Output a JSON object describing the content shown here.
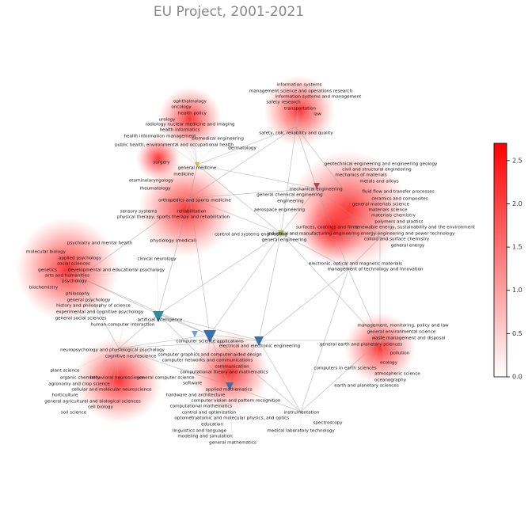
{
  "chart_data": {
    "type": "network",
    "title": "EU Project, 2001-2021",
    "clim": [
      0,
      2.7
    ],
    "cticks": [
      {
        "value": 0,
        "label": "0.0"
      },
      {
        "value": 0.5,
        "label": "0.5"
      },
      {
        "value": 1,
        "label": "1.0"
      },
      {
        "value": 1.5,
        "label": "1.5"
      },
      {
        "value": 2,
        "label": "2.0"
      },
      {
        "value": 2.5,
        "label": "2.5"
      }
    ],
    "nodes": [
      "information systems",
      "management science and operations research",
      "information systems and management",
      "safety research",
      "transportation",
      "law",
      "safety, risk, reliability and quality",
      "ophthalmology",
      "oncology",
      "health policy",
      "urology",
      "radiology nuclear medicine and imaging",
      "health informatics",
      "health information management",
      "biomedical engineering",
      "public health, environmental and occupational health",
      "dermatology",
      "surgery",
      "general medicine",
      "medicine",
      "otorhinolaryngology",
      "rheumatology",
      "orthopedics and sports medicine",
      "sensory systems",
      "rehabilitation",
      "physical therapy, sports therapy and rehabilitation",
      "physiology (medical)",
      "psychiatry and mental health",
      "clinical neurology",
      "molecular biology",
      "applied psychology",
      "social sciences",
      "genetics",
      "developmental and educational psychology",
      "arts and humanities",
      "psychology",
      "biochemistry",
      "philosophy",
      "general psychology",
      "history and philosophy of science",
      "experimental and cognitive psychology",
      "general social sciences",
      "artificial intelligence",
      "human-computer interaction",
      "computer science applications",
      "electrical and electronic engineering",
      "neuropsychology and physiological psychology",
      "cognitive neuroscience",
      "computer graphics and computer-aided design",
      "computer networks and communications",
      "communication",
      "computational theory and mathematics",
      "software",
      "plant science",
      "organic chemistry",
      "behavioral neuroscience",
      "general computer science",
      "agronomy and crop science",
      "cellular and molecular neuroscience",
      "horticulture",
      "general agricultural and biological sciences",
      "cell biology",
      "soil science",
      "applied mathematics",
      "hardware and architecture",
      "computer vision and pattern recognition",
      "computational mathematics",
      "control and optimization",
      "optometry",
      "atomic and molecular physics, and optics",
      "education",
      "instrumentation",
      "spectroscopy",
      "medical laboratory technology",
      "linguistics and language",
      "modeling and simulation",
      "general mathematics",
      "geotechnical engineering and engineering geology",
      "civil and structural engineering",
      "mechanics of materials",
      "metals and alloys",
      "mechanical engineering",
      "general chemical engineering",
      "fluid flow and transfer processes",
      "ceramics and composites",
      "engineering",
      "general materials science",
      "materials science",
      "aerospace engineering",
      "materials chemistry",
      "polymers and plastics",
      "surfaces, coatings and films",
      "renewable energy, sustainability and the environment",
      "control and systems engineering",
      "industrial and manufacturing engineering",
      "energy engineering and power technology",
      "colloid and surface chemistry",
      "general engineering",
      "general energy",
      "electronic, optical and magnetic materials",
      "management of technology and innovation",
      "management, monitoring, policy and law",
      "general environmental science",
      "waste management and disposal",
      "general earth and planetary sciences",
      "pollution",
      "ecology",
      "computers in earth sciences",
      "atmospheric science",
      "oceanography",
      "earth and planetary sciences"
    ]
  }
}
